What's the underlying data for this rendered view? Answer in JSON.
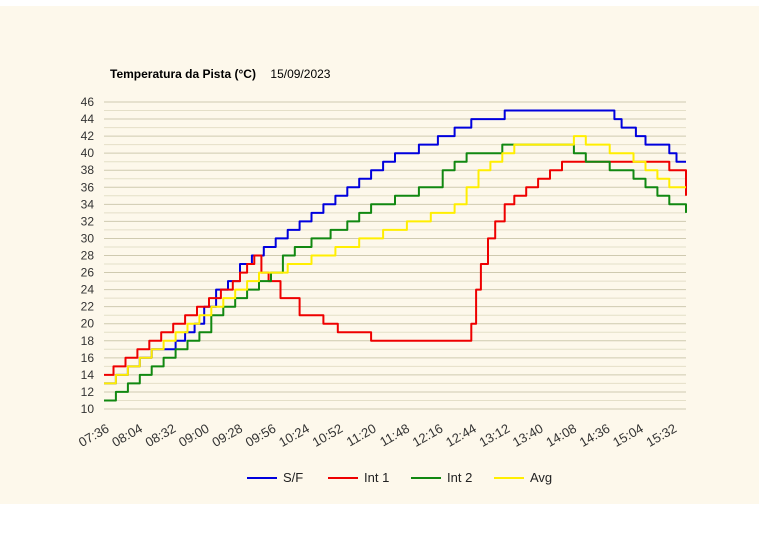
{
  "title": "Temperatura da Pista (°C)",
  "date": "15/09/2023",
  "chart_data": {
    "type": "line",
    "ylim": [
      10,
      46
    ],
    "yticks": [
      10,
      12,
      14,
      16,
      18,
      20,
      22,
      24,
      26,
      28,
      30,
      32,
      34,
      36,
      38,
      40,
      42,
      44,
      46
    ],
    "xtick_labels": [
      "07:36",
      "08:04",
      "08:32",
      "09:00",
      "09:28",
      "09:56",
      "10:24",
      "10:52",
      "11:20",
      "11:48",
      "12:16",
      "12:44",
      "13:12",
      "13:40",
      "14:08",
      "14:36",
      "15:04",
      "15:32"
    ],
    "grid": true,
    "legend_position": "bottom",
    "series": [
      {
        "name": "S/F",
        "color": "#0000dd",
        "x": [
          "07:36",
          "07:46",
          "07:56",
          "08:06",
          "08:16",
          "08:26",
          "08:36",
          "08:44",
          "08:52",
          "09:00",
          "09:10",
          "09:20",
          "09:30",
          "09:40",
          "09:50",
          "10:00",
          "10:10",
          "10:20",
          "10:30",
          "10:40",
          "10:50",
          "11:00",
          "11:10",
          "11:20",
          "11:30",
          "11:40",
          "11:50",
          "12:00",
          "12:16",
          "12:30",
          "12:44",
          "13:00",
          "13:12",
          "13:30",
          "13:50",
          "14:10",
          "14:30",
          "14:44",
          "14:50",
          "14:56",
          "15:02",
          "15:10",
          "15:20",
          "15:30",
          "15:36",
          "15:44"
        ],
        "values": [
          13,
          14,
          15,
          16,
          17,
          17,
          18,
          19,
          20,
          22,
          24,
          25,
          27,
          28,
          29,
          30,
          31,
          32,
          33,
          34,
          35,
          36,
          37,
          38,
          39,
          40,
          40,
          41,
          42,
          43,
          44,
          44,
          45,
          45,
          45,
          45,
          45,
          44,
          43,
          43,
          42,
          41,
          41,
          40,
          39,
          39
        ]
      },
      {
        "name": "Int 1",
        "color": "#ee0000",
        "x": [
          "07:36",
          "07:44",
          "07:54",
          "08:04",
          "08:14",
          "08:24",
          "08:34",
          "08:44",
          "08:54",
          "09:04",
          "09:14",
          "09:24",
          "09:30",
          "09:36",
          "09:42",
          "09:48",
          "09:54",
          "10:04",
          "10:20",
          "10:40",
          "10:52",
          "11:20",
          "11:50",
          "12:20",
          "12:40",
          "12:44",
          "12:48",
          "12:52",
          "12:58",
          "13:04",
          "13:12",
          "13:20",
          "13:30",
          "13:40",
          "13:50",
          "14:00",
          "14:10",
          "14:20",
          "14:40",
          "15:00",
          "15:20",
          "15:30",
          "15:44"
        ],
        "values": [
          14,
          15,
          16,
          17,
          18,
          19,
          20,
          21,
          22,
          23,
          24,
          25,
          26,
          27,
          28,
          26,
          25,
          23,
          21,
          20,
          19,
          18,
          18,
          18,
          18,
          20,
          24,
          27,
          30,
          32,
          34,
          35,
          36,
          37,
          38,
          39,
          39,
          39,
          39,
          39,
          39,
          38,
          35
        ]
      },
      {
        "name": "Int 2",
        "color": "#118811",
        "x": [
          "07:36",
          "07:46",
          "07:56",
          "08:06",
          "08:16",
          "08:26",
          "08:36",
          "08:46",
          "08:56",
          "09:06",
          "09:16",
          "09:26",
          "09:36",
          "09:46",
          "09:56",
          "10:06",
          "10:16",
          "10:30",
          "10:46",
          "11:00",
          "11:10",
          "11:20",
          "11:40",
          "12:00",
          "12:20",
          "12:30",
          "12:40",
          "12:50",
          "13:00",
          "13:10",
          "13:20",
          "13:40",
          "14:00",
          "14:10",
          "14:20",
          "14:40",
          "15:00",
          "15:10",
          "15:20",
          "15:30",
          "15:36",
          "15:44"
        ],
        "values": [
          11,
          12,
          13,
          14,
          15,
          16,
          17,
          18,
          19,
          21,
          22,
          23,
          24,
          25,
          26,
          28,
          29,
          30,
          31,
          32,
          33,
          34,
          35,
          36,
          38,
          39,
          40,
          40,
          40,
          41,
          41,
          41,
          41,
          40,
          39,
          38,
          37,
          36,
          35,
          34,
          34,
          33
        ]
      },
      {
        "name": "Avg",
        "color": "#ffee00",
        "x": [
          "07:36",
          "07:46",
          "07:56",
          "08:06",
          "08:16",
          "08:26",
          "08:36",
          "08:46",
          "08:56",
          "09:06",
          "09:16",
          "09:26",
          "09:36",
          "09:46",
          "09:56",
          "10:10",
          "10:30",
          "10:50",
          "11:10",
          "11:30",
          "11:50",
          "12:10",
          "12:30",
          "12:40",
          "12:50",
          "13:00",
          "13:10",
          "13:20",
          "13:40",
          "14:00",
          "14:10",
          "14:20",
          "14:40",
          "15:00",
          "15:10",
          "15:20",
          "15:30",
          "15:44"
        ],
        "values": [
          13,
          14,
          15,
          16,
          17,
          18,
          19,
          20,
          21,
          22,
          23,
          24,
          25,
          26,
          26,
          27,
          28,
          29,
          30,
          31,
          32,
          33,
          34,
          36,
          38,
          39,
          40,
          41,
          41,
          41,
          42,
          41,
          40,
          39,
          38,
          37,
          36,
          36
        ]
      }
    ]
  }
}
